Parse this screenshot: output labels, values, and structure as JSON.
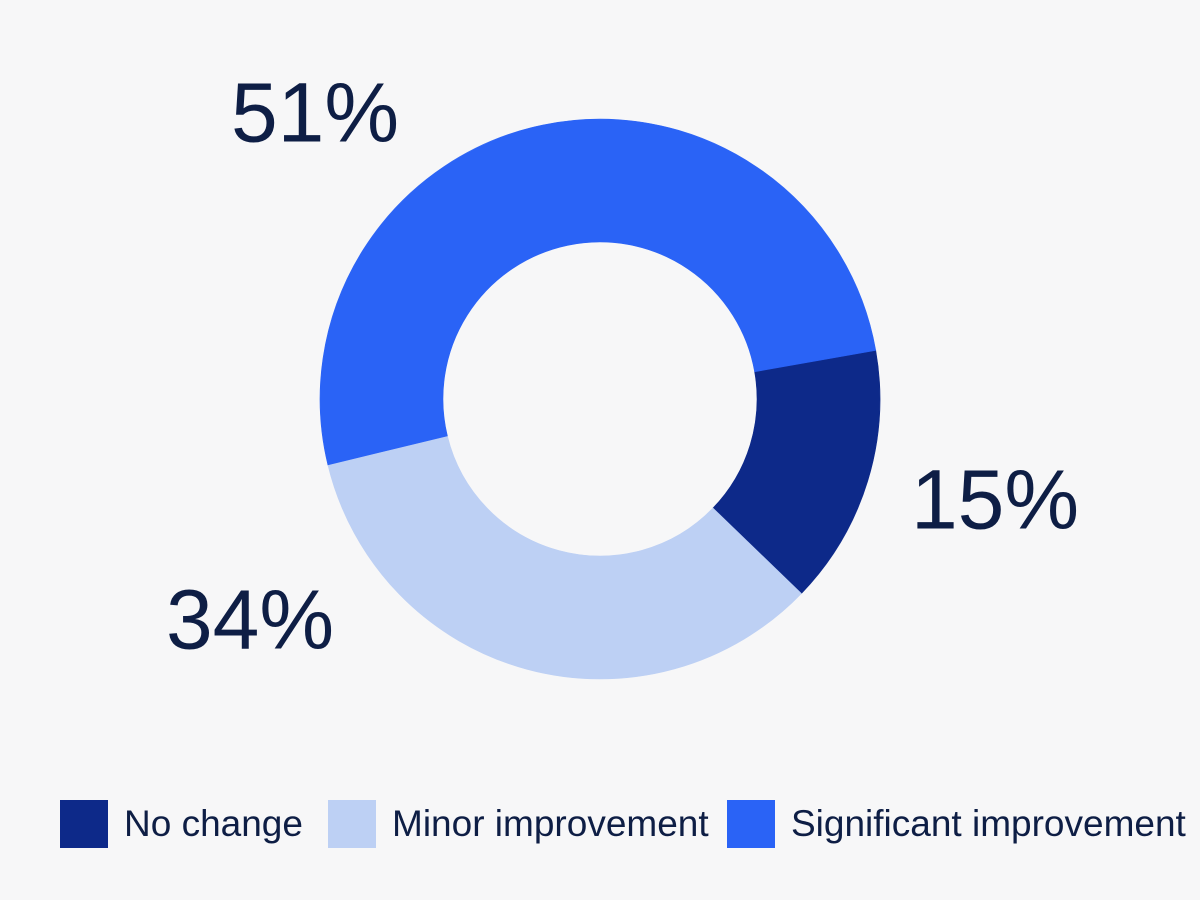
{
  "background_color": "#F7F7F8",
  "text_color": "#0E1E45",
  "donut_hole_color": "#FFFFFF",
  "chart_data": {
    "type": "pie",
    "variant": "donut",
    "title": "",
    "legend_position": "bottom",
    "direction": "clockwise",
    "start_angle_deg": 80,
    "inner_radius_ratio": 0.56,
    "segments": [
      {
        "label": "No change",
        "value_pct": 15,
        "display": "15%",
        "color": "#0D2989"
      },
      {
        "label": "Minor improvement",
        "value_pct": 34,
        "display": "34%",
        "color": "#BDD0F4"
      },
      {
        "label": "Significant improvement",
        "value_pct": 51,
        "display": "51%",
        "color": "#2A63F6"
      }
    ]
  }
}
